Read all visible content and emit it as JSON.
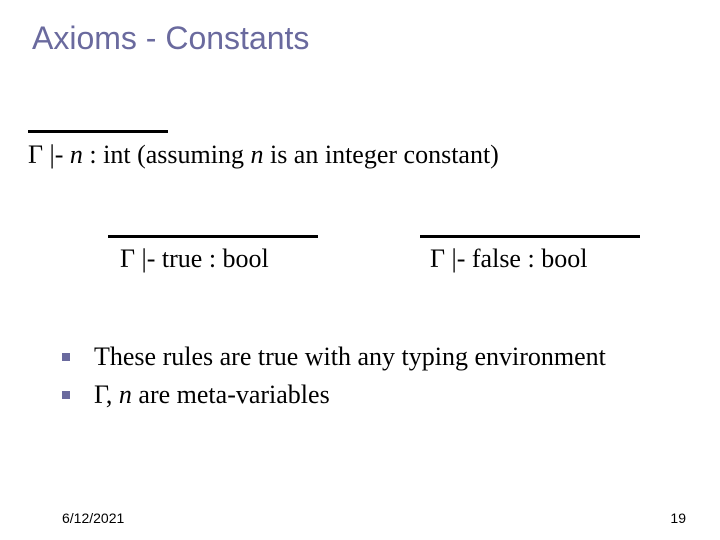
{
  "title": "Axioms - Constants",
  "rule1": {
    "gamma": "Γ",
    "turnstile": " |- ",
    "var": "n",
    "colon_type": " : int",
    "note_prefix": "   (assuming ",
    "note_var": "n",
    "note_suffix": " is an integer constant)"
  },
  "rule2": {
    "text": "Γ |- true : bool"
  },
  "rule3": {
    "text": "Γ |- false : bool"
  },
  "bullets": {
    "b1": "These rules are true with any typing environment",
    "b2_prefix": "Γ, ",
    "b2_var": "n",
    "b2_suffix": "  are meta-variables"
  },
  "footer": {
    "date": "6/12/2021",
    "page": "19"
  },
  "colors": {
    "title_color": "#6a6a9e",
    "bullet_color": "#6a6a9e",
    "text_color": "#000000",
    "line_color": "#000000",
    "background": "#ffffff"
  }
}
